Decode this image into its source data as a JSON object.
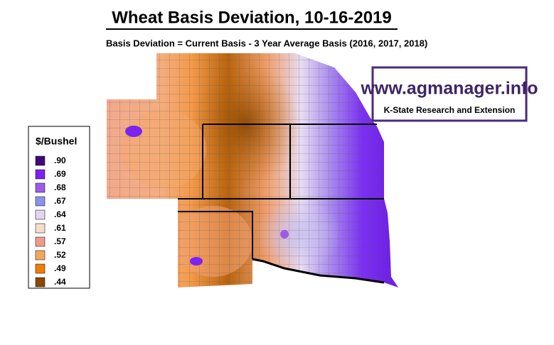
{
  "header": {
    "title": "Wheat Basis Deviation, 10-16-2019",
    "subtitle": "Basis Deviation = Current Basis - 3 Year Average Basis (2016, 2017, 2018)"
  },
  "logo": {
    "url": "www.agmanager.info",
    "org": "K-State Research and Extension"
  },
  "legend": {
    "title": "$/Bushel",
    "items": [
      {
        "label": ".90",
        "color": "#3f0a78"
      },
      {
        "label": ".69",
        "color": "#7b22f5"
      },
      {
        "label": ".68",
        "color": "#9c5ce8"
      },
      {
        "label": ".67",
        "color": "#8c92ea"
      },
      {
        "label": ".64",
        "color": "#e2d4f3"
      },
      {
        "label": ".61",
        "color": "#f6dccb"
      },
      {
        "label": ".57",
        "color": "#f09a8e"
      },
      {
        "label": ".52",
        "color": "#f5a65c"
      },
      {
        "label": ".49",
        "color": "#f07c05"
      },
      {
        "label": ".44",
        "color": "#8a4800"
      }
    ]
  }
}
